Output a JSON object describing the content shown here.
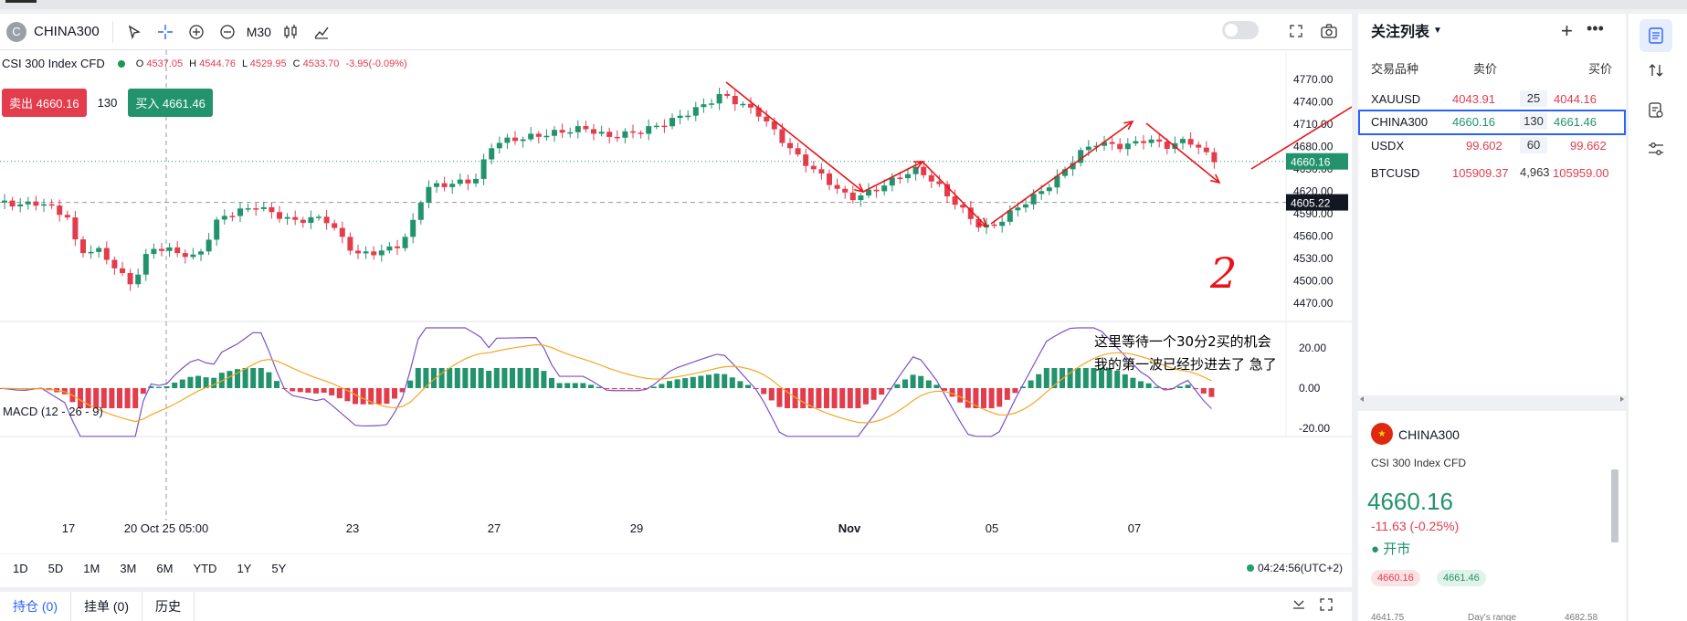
{
  "symbol": {
    "badge": "C",
    "name": "CHINA300"
  },
  "toolbar": {
    "timeframe": "M30"
  },
  "legend": {
    "title": "CSI 300 Index CFD",
    "o_label": "O",
    "o": "4537.05",
    "h_label": "H",
    "h": "4544.76",
    "l_label": "L",
    "l": "4529.95",
    "c_label": "C",
    "c": "4533.70",
    "change": "-3.95(-0.09%)"
  },
  "trade": {
    "sell": "卖出 4660.16",
    "qty": "130",
    "buy": "买入 4661.46"
  },
  "macd_label": "MACD (12 - 26 - 9)",
  "price_axis": [
    "4770.00",
    "4740.00",
    "4710.00",
    "4680.00",
    "4650.00",
    "4620.00",
    "4590.00",
    "4560.00",
    "4530.00",
    "4500.00",
    "4470.00"
  ],
  "price_tag_current": "4660.16",
  "price_tag_cursor": "4605.22",
  "macd_axis": [
    "20.00",
    "0.00",
    "-20.00"
  ],
  "time_axis": [
    "17",
    "20 Oct 25 05:00",
    "23",
    "27",
    "29",
    "Nov",
    "05",
    "07"
  ],
  "annotation": {
    "line1": "这里等待一个30分2买的机会",
    "line2": "我的第一波已经抄进去了 急了",
    "handwritten": "2"
  },
  "range_buttons": [
    "1D",
    "5D",
    "1M",
    "3M",
    "6M",
    "YTD",
    "1Y",
    "5Y"
  ],
  "clock": "04:24:56(UTC+2)",
  "bottom_tabs": [
    "持仓 (0)",
    "挂单 (0)",
    "历史"
  ],
  "watchlist": {
    "title": "关注列表",
    "col_symbol": "交易品种",
    "col_bid": "卖价",
    "col_ask": "买价",
    "rows": [
      {
        "symbol": "XAUUSD",
        "bid": "4043.91",
        "spread": "25",
        "ask": "4044.16"
      },
      {
        "symbol": "CHINA300",
        "bid": "4660.16",
        "spread": "130",
        "ask": "4661.46"
      },
      {
        "symbol": "USDX",
        "bid": "99.602",
        "spread": "60",
        "ask": "99.662"
      },
      {
        "symbol": "BTCUSD",
        "bid": "105909.37",
        "spread": "4,963",
        "ask": "105959.00"
      }
    ]
  },
  "detail": {
    "symbol": "CHINA300",
    "name": "CSI 300 Index CFD",
    "price": "4660.16",
    "change": "-11.63 (-0.25%)",
    "status": "开市",
    "bid": "4660.16",
    "ask": "4661.46",
    "low": "4641.75",
    "range_label": "Day's range",
    "high": "4682.58"
  },
  "colors": {
    "up": "#22936c",
    "down": "#e23c4d",
    "macd_line": "#7b52c9",
    "signal_line": "#f5a623",
    "accent": "#2962ff"
  },
  "icons": [
    "cursor-icon",
    "crosshair-icon",
    "zoom-in-icon",
    "zoom-out-icon",
    "candles-icon",
    "indicator-icon",
    "fullscreen-icon",
    "camera-icon",
    "list-icon",
    "exchange-icon",
    "order-icon",
    "settings-sliders-icon"
  ]
}
